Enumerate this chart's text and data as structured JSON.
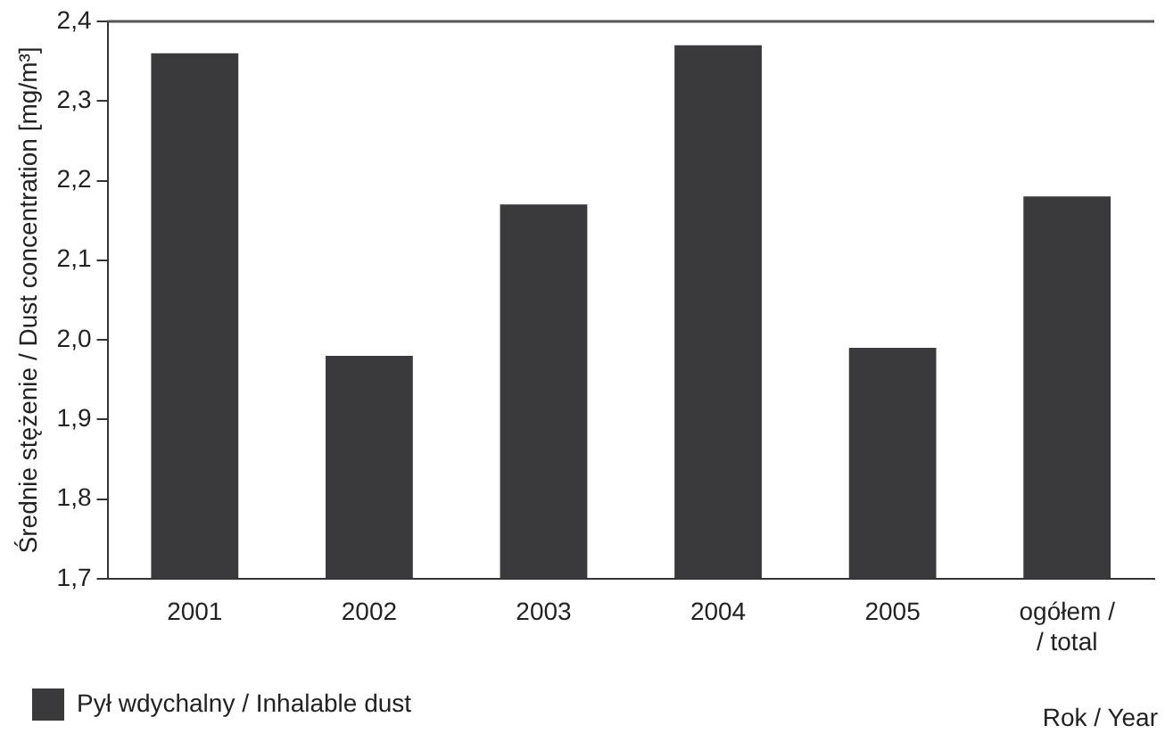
{
  "chart_data": {
    "type": "bar",
    "ylabel": "Średnie stężenie / Dust concentration [mg/m³]",
    "xlabel": "Rok / Year",
    "categories": [
      "2001",
      "2002",
      "2003",
      "2004",
      "2005",
      "ogółem /\n/ total"
    ],
    "series": [
      {
        "name": "Pył wdychalny / Inhalable dust",
        "color": "#3a3a3c",
        "values": [
          2.36,
          1.98,
          2.17,
          2.37,
          1.99,
          2.18
        ]
      }
    ],
    "ylim": [
      1.7,
      2.4
    ],
    "yticks": [
      {
        "value": 1.7,
        "label": "1,7"
      },
      {
        "value": 1.8,
        "label": "1,8"
      },
      {
        "value": 1.9,
        "label": "1,9"
      },
      {
        "value": 2.0,
        "label": "2,0"
      },
      {
        "value": 2.1,
        "label": "2,1"
      },
      {
        "value": 2.2,
        "label": "2,2"
      },
      {
        "value": 2.3,
        "label": "2,3"
      },
      {
        "value": 2.4,
        "label": "2,4"
      }
    ],
    "grid": false,
    "legend": "bottom left"
  }
}
